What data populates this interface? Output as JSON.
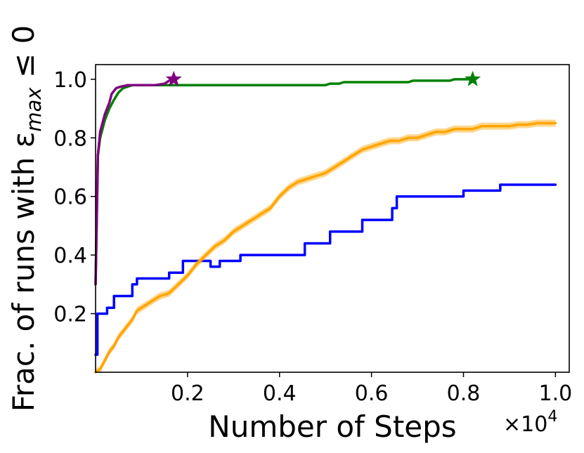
{
  "chart_data": {
    "type": "line",
    "title": "",
    "xlabel": "Number of Steps",
    "ylabel": "Frac. of runs with ε",
    "ylabel_sub": "max",
    "ylabel_tail": " ≤ 0",
    "x_multiplier_base": "×10",
    "x_multiplier_exp": "4",
    "xlim": [
      0,
      1.03
    ],
    "ylim": [
      0,
      1.05
    ],
    "xticks": [
      0.2,
      0.4,
      0.6,
      0.8,
      1.0
    ],
    "xtick_labels": [
      "0.2",
      "0.4",
      "0.6",
      "0.8",
      "1.0"
    ],
    "yticks": [
      0.2,
      0.4,
      0.6,
      0.8,
      1.0
    ],
    "ytick_labels": [
      "0.2",
      "0.4",
      "0.6",
      "0.8",
      "1.0"
    ],
    "grid": false,
    "series": [
      {
        "color": "#0000ff",
        "step": true,
        "points": [
          [
            0.0,
            0.06
          ],
          [
            0.004,
            0.2
          ],
          [
            0.015,
            0.2
          ],
          [
            0.025,
            0.22
          ],
          [
            0.04,
            0.26
          ],
          [
            0.06,
            0.26
          ],
          [
            0.08,
            0.3
          ],
          [
            0.09,
            0.32
          ],
          [
            0.15,
            0.32
          ],
          [
            0.16,
            0.34
          ],
          [
            0.18,
            0.34
          ],
          [
            0.19,
            0.38
          ],
          [
            0.24,
            0.38
          ],
          [
            0.25,
            0.36
          ],
          [
            0.265,
            0.36
          ],
          [
            0.27,
            0.38
          ],
          [
            0.31,
            0.38
          ],
          [
            0.315,
            0.4
          ],
          [
            0.45,
            0.4
          ],
          [
            0.455,
            0.44
          ],
          [
            0.5,
            0.44
          ],
          [
            0.51,
            0.48
          ],
          [
            0.57,
            0.48
          ],
          [
            0.58,
            0.52
          ],
          [
            0.64,
            0.52
          ],
          [
            0.645,
            0.56
          ],
          [
            0.655,
            0.6
          ],
          [
            0.79,
            0.6
          ],
          [
            0.8,
            0.62
          ],
          [
            0.87,
            0.62
          ],
          [
            0.88,
            0.64
          ],
          [
            1.0,
            0.64
          ]
        ]
      },
      {
        "color": "#ffa500",
        "band": true,
        "band_width": 0.012,
        "points": [
          [
            0.0,
            0.0
          ],
          [
            0.01,
            0.01
          ],
          [
            0.02,
            0.04
          ],
          [
            0.03,
            0.07
          ],
          [
            0.04,
            0.09
          ],
          [
            0.05,
            0.12
          ],
          [
            0.06,
            0.14
          ],
          [
            0.07,
            0.16
          ],
          [
            0.08,
            0.18
          ],
          [
            0.09,
            0.21
          ],
          [
            0.1,
            0.22
          ],
          [
            0.12,
            0.24
          ],
          [
            0.14,
            0.26
          ],
          [
            0.16,
            0.27
          ],
          [
            0.18,
            0.3
          ],
          [
            0.2,
            0.33
          ],
          [
            0.22,
            0.37
          ],
          [
            0.24,
            0.4
          ],
          [
            0.26,
            0.43
          ],
          [
            0.28,
            0.45
          ],
          [
            0.3,
            0.48
          ],
          [
            0.32,
            0.5
          ],
          [
            0.34,
            0.52
          ],
          [
            0.36,
            0.54
          ],
          [
            0.38,
            0.56
          ],
          [
            0.39,
            0.58
          ],
          [
            0.4,
            0.6
          ],
          [
            0.42,
            0.63
          ],
          [
            0.44,
            0.65
          ],
          [
            0.46,
            0.66
          ],
          [
            0.48,
            0.67
          ],
          [
            0.5,
            0.68
          ],
          [
            0.52,
            0.7
          ],
          [
            0.54,
            0.72
          ],
          [
            0.56,
            0.74
          ],
          [
            0.58,
            0.76
          ],
          [
            0.6,
            0.77
          ],
          [
            0.62,
            0.78
          ],
          [
            0.64,
            0.79
          ],
          [
            0.66,
            0.79
          ],
          [
            0.68,
            0.8
          ],
          [
            0.7,
            0.8
          ],
          [
            0.72,
            0.81
          ],
          [
            0.74,
            0.82
          ],
          [
            0.76,
            0.82
          ],
          [
            0.78,
            0.83
          ],
          [
            0.8,
            0.83
          ],
          [
            0.82,
            0.83
          ],
          [
            0.84,
            0.84
          ],
          [
            0.86,
            0.84
          ],
          [
            0.88,
            0.84
          ],
          [
            0.9,
            0.84
          ],
          [
            0.92,
            0.845
          ],
          [
            0.94,
            0.845
          ],
          [
            0.96,
            0.85
          ],
          [
            0.98,
            0.85
          ],
          [
            1.0,
            0.85
          ]
        ]
      },
      {
        "color": "#008000",
        "end_marker": "star",
        "points": [
          [
            0.0,
            0.3
          ],
          [
            0.005,
            0.74
          ],
          [
            0.01,
            0.8
          ],
          [
            0.02,
            0.86
          ],
          [
            0.03,
            0.9
          ],
          [
            0.04,
            0.93
          ],
          [
            0.05,
            0.955
          ],
          [
            0.06,
            0.97
          ],
          [
            0.07,
            0.975
          ],
          [
            0.08,
            0.98
          ],
          [
            0.5,
            0.98
          ],
          [
            0.51,
            0.985
          ],
          [
            0.53,
            0.985
          ],
          [
            0.54,
            0.99
          ],
          [
            0.68,
            0.99
          ],
          [
            0.69,
            0.995
          ],
          [
            0.77,
            0.995
          ],
          [
            0.78,
            1.0
          ],
          [
            0.82,
            1.0
          ]
        ]
      },
      {
        "color": "#800080",
        "end_marker": "star",
        "points": [
          [
            0.0,
            0.3
          ],
          [
            0.005,
            0.74
          ],
          [
            0.01,
            0.82
          ],
          [
            0.02,
            0.88
          ],
          [
            0.03,
            0.92
          ],
          [
            0.035,
            0.95
          ],
          [
            0.045,
            0.97
          ],
          [
            0.055,
            0.975
          ],
          [
            0.07,
            0.98
          ],
          [
            0.13,
            0.98
          ],
          [
            0.15,
            0.985
          ],
          [
            0.16,
            0.995
          ],
          [
            0.17,
            1.0
          ]
        ]
      }
    ]
  }
}
